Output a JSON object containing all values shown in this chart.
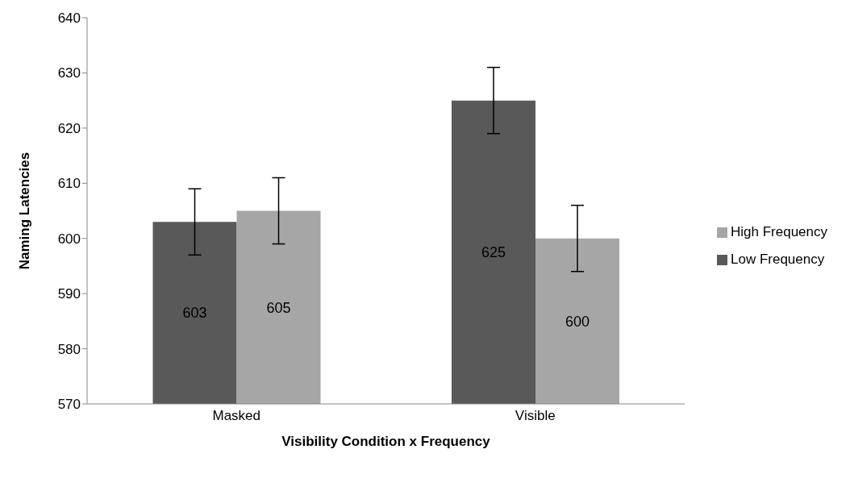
{
  "chart_data": {
    "type": "bar",
    "xlabel": "Visibility Condition x Frequency",
    "ylabel": "Naming Latencies",
    "categories": [
      "Masked",
      "Visible"
    ],
    "series": [
      {
        "name": "Low Frequency",
        "color": "#595959",
        "values": [
          603,
          625
        ],
        "errors": [
          6,
          6
        ]
      },
      {
        "name": "High Frequency",
        "color": "#a6a6a6",
        "values": [
          605,
          600
        ],
        "errors": [
          6,
          6
        ]
      }
    ],
    "ylim": [
      570,
      640
    ],
    "yticks": [
      570,
      580,
      590,
      600,
      610,
      620,
      630,
      640
    ],
    "grid": false,
    "legend": "right",
    "data_labels": true
  }
}
